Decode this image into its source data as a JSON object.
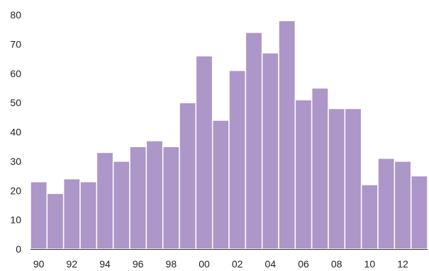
{
  "chart_data": {
    "type": "bar",
    "title": "",
    "xlabel": "",
    "ylabel": "",
    "categories": [
      "90",
      "91",
      "92",
      "93",
      "94",
      "95",
      "96",
      "97",
      "98",
      "99",
      "00",
      "01",
      "02",
      "03",
      "04",
      "05",
      "06",
      "07",
      "08",
      "09",
      "10",
      "11",
      "12",
      "13"
    ],
    "values": [
      23,
      19,
      24,
      23,
      33,
      30,
      35,
      37,
      35,
      50,
      66,
      44,
      61,
      74,
      67,
      78,
      51,
      55,
      48,
      48,
      22,
      31,
      30,
      25
    ],
    "x_tick_labels": [
      "90",
      "92",
      "94",
      "96",
      "98",
      "00",
      "02",
      "04",
      "06",
      "08",
      "10",
      "12"
    ],
    "y_ticks": [
      "0",
      "10",
      "20",
      "30",
      "40",
      "50",
      "60",
      "70",
      "80"
    ],
    "ylim": [
      0,
      80
    ],
    "grid": false,
    "bar_color": "#ad96c8"
  }
}
